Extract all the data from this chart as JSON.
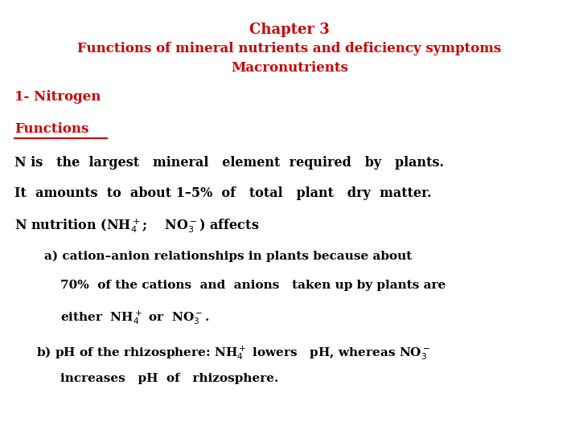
{
  "bg_color": "#ffffff",
  "red": "#cc0000",
  "black": "#000000",
  "figsize": [
    7.2,
    5.4
  ],
  "dpi": 100,
  "title1": "Chapter 3",
  "title2": "Functions of mineral nutrients and deficiency symptoms",
  "title3": "Macronutrients",
  "heading1": "1- Nitrogen",
  "heading2": "Functions",
  "line1": "N is   the  largest   mineral   element  required   by   plants.",
  "line2": "It  amounts  to  about 1–5%  of   total   plant   dry  matter.",
  "line3_pre": "N nutrition (NH",
  "line3_mid": ";    NO",
  "line3_post": ") affects",
  "a1": "a) cation–anion relationships in plants because about",
  "a2": "70%  of the cations  and  anions   taken up by plants are",
  "a3_pre": "either  NH",
  "a3_post": " or  NO",
  "b1_pre": "b) pH of the rhizosphere: NH",
  "b1_mid": " lowers   pH, whereas NO",
  "b2": "increases   pH  of   rhizosphere."
}
